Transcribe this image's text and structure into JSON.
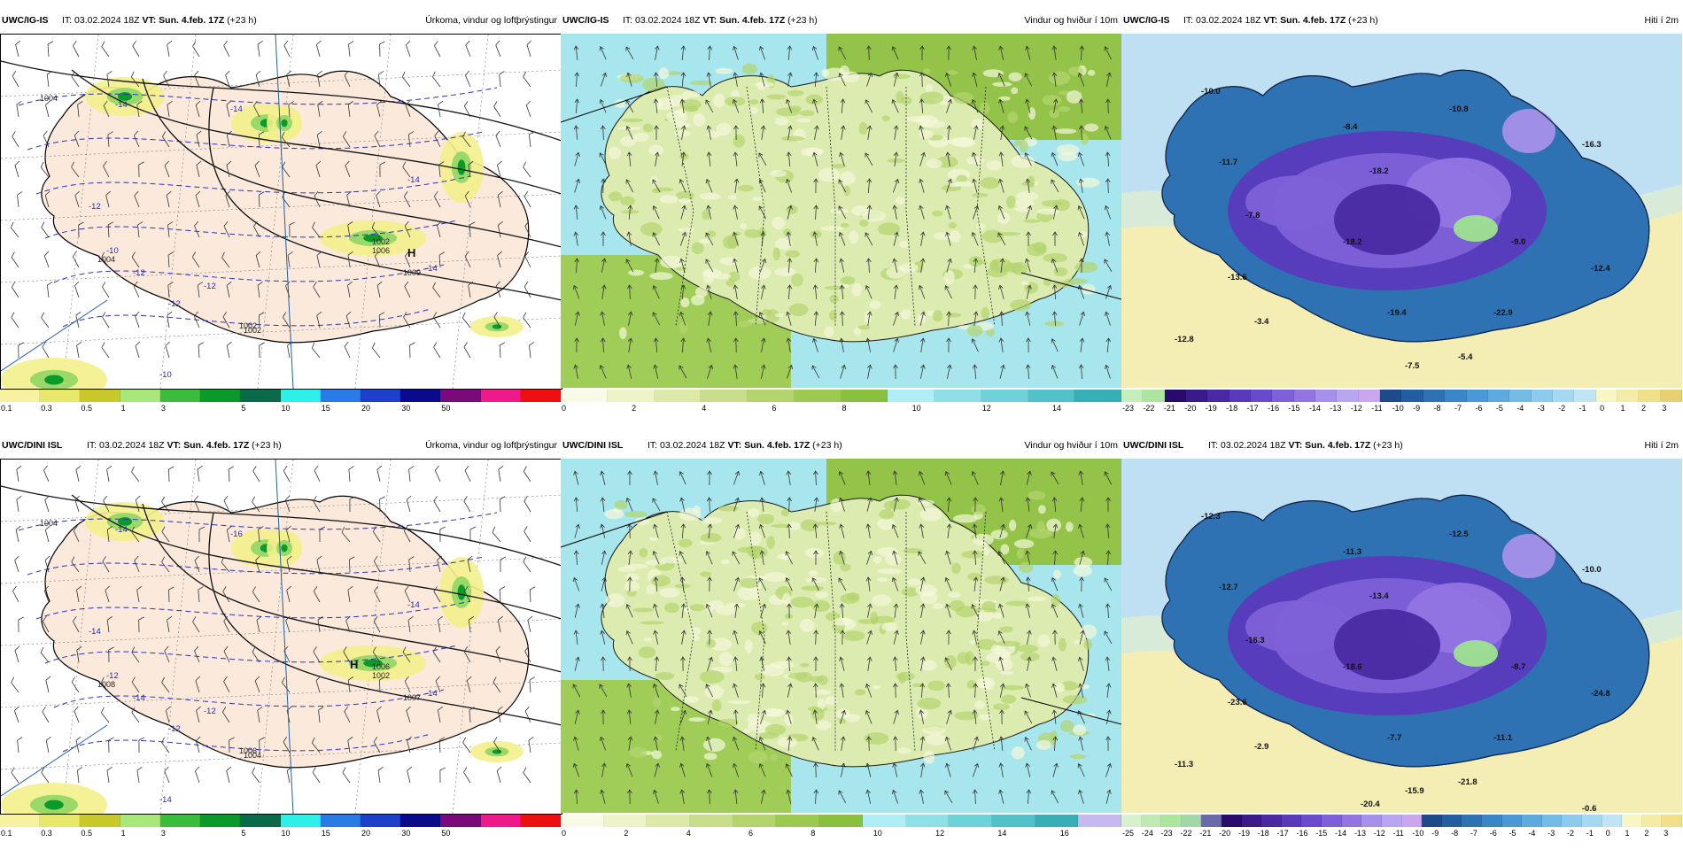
{
  "panels": [
    {
      "model": "UWC/IG-IS",
      "it_prefix": "IT: 03.02.2024 18Z ",
      "vt": "VT: Sun. 4.feb. 17Z",
      "lead": " (+23 h)",
      "title": "Úrkoma, vindur og loftþrýstingur",
      "kind": "precip",
      "colorbar": [
        "#f6f2a0",
        "#e8e86a",
        "#c8c82a",
        "#a8e87a",
        "#3cbc3c",
        "#0a9a2a",
        "#0a6a4a",
        "#2ef0e8",
        "#2a7ae8",
        "#1e3ecc",
        "#0a0a8a",
        "#7a0a7a",
        "#ee1a8a",
        "#ee1010"
      ],
      "ticks": [
        "0.1",
        "0.3",
        "0.5",
        "1",
        "3",
        "",
        "5",
        "10",
        "15",
        "20",
        "30",
        "50",
        "",
        ""
      ],
      "isobars": [
        "1004",
        "1002",
        "1004",
        "1002",
        "1006",
        "1009",
        "1002"
      ],
      "contour_labels": [
        "-14",
        "-14",
        "-14",
        "-12",
        "-12",
        "-10",
        "-12",
        "-10",
        "-12",
        "-14"
      ],
      "high": "H"
    },
    {
      "model": "UWC/IG-IS",
      "it_prefix": "IT: 03.02.2024 18Z ",
      "vt": "VT: Sun. 4.feb. 17Z",
      "lead": " (+23 h)",
      "title": "Vindur og hviður í 10m",
      "kind": "wind",
      "colorbar": [
        "#fafbe6",
        "#eef3c8",
        "#dde9a8",
        "#c8de8c",
        "#b4d46e",
        "#9cc950",
        "#8ac040",
        "#aeeef4",
        "#8ee0e6",
        "#6ed2d8",
        "#50c2c8",
        "#36b0b6"
      ],
      "ticks": [
        "0",
        "",
        "2",
        "",
        "4",
        "",
        "6",
        "",
        "8",
        "",
        "10",
        "",
        "12",
        "",
        "14",
        ""
      ]
    },
    {
      "model": "UWC/IG-IS",
      "it_prefix": "IT: 03.02.2024 18Z ",
      "vt": "VT: Sun. 4.feb. 17Z",
      "lead": " (+23 h)",
      "title": "Hiti í 2m",
      "kind": "temp",
      "colorbar": [
        "#c6eebc",
        "#ace4a0",
        "#2a0a6a",
        "#3a1a8a",
        "#4a2aa2",
        "#5a3abc",
        "#6a4acc",
        "#7e60d8",
        "#9274e2",
        "#a690ea",
        "#b8a6f0",
        "#caa6ee",
        "#1e4a8a",
        "#245ea0",
        "#2e72b4",
        "#3a86c6",
        "#4a98d4",
        "#5eaade",
        "#74bce6",
        "#8ccaee",
        "#a6d8f2",
        "#c0e4f4",
        "#f8f6c4",
        "#f4eca6",
        "#f0e08a",
        "#e8d070"
      ],
      "ticks": [
        "-23",
        "-22",
        "-21",
        "-20",
        "-19",
        "-18",
        "-17",
        "-16",
        "-15",
        "-14",
        "-13",
        "-12",
        "-11",
        "-10",
        "-9",
        "-8",
        "-7",
        "-6",
        "-5",
        "-4",
        "-3",
        "-2",
        "-1",
        "0",
        "1",
        "2",
        "3"
      ],
      "labels": [
        "-10.0",
        "-8.4",
        "-10.8",
        "-16.3",
        "-11.7",
        "-7.8",
        "-18.2",
        "-9.0",
        "-13.6",
        "-18.2",
        "-12.4",
        "-22.9",
        "-3.4",
        "-19.4",
        "-7.5",
        "-5.4",
        "-12.8"
      ]
    },
    {
      "model": "UWC/DINI ISL",
      "it_prefix": "IT: 03.02.2024 18Z ",
      "vt": "VT: Sun. 4.feb. 17Z",
      "lead": " (+23 h)",
      "title": "Úrkoma, vindur og loftþrýstingur",
      "kind": "precip",
      "colorbar": [
        "#f6f2a0",
        "#e8e86a",
        "#c8c82a",
        "#a8e87a",
        "#3cbc3c",
        "#0a9a2a",
        "#0a6a4a",
        "#2ef0e8",
        "#2a7ae8",
        "#1e3ecc",
        "#0a0a8a",
        "#7a0a7a",
        "#ee1a8a",
        "#ee1010"
      ],
      "ticks": [
        "0.1",
        "0.3",
        "0.5",
        "1",
        "3",
        "",
        "5",
        "10",
        "15",
        "20",
        "30",
        "50",
        "",
        ""
      ],
      "isobars": [
        "1004",
        "1006",
        "1008",
        "1004",
        "1002",
        "1007",
        "1006"
      ],
      "contour_labels": [
        "-16",
        "-14",
        "-14",
        "-14",
        "-14",
        "-12",
        "-12",
        "-14",
        "-12",
        "-14"
      ],
      "high": "H"
    },
    {
      "model": "UWC/DINI ISL",
      "it_prefix": "IT: 03.02.2024 18Z ",
      "vt": "VT: Sun. 4.feb. 17Z",
      "lead": " (+23 h)",
      "title": "Vindur og hviður í 10m",
      "kind": "wind",
      "colorbar": [
        "#fafbe6",
        "#eef3c8",
        "#dde9a8",
        "#c8de8c",
        "#b4d46e",
        "#9cc950",
        "#8ac040",
        "#aeeef4",
        "#8ee0e6",
        "#6ed2d8",
        "#50c2c8",
        "#36b0b6",
        "#c8b8f0"
      ],
      "ticks": [
        "0",
        "",
        "2",
        "",
        "4",
        "",
        "6",
        "",
        "8",
        "",
        "10",
        "",
        "12",
        "",
        "14",
        "",
        "16",
        ""
      ]
    },
    {
      "model": "UWC/DINI ISL",
      "it_prefix": "IT: 03.02.2024 18Z ",
      "vt": "VT: Sun. 4.feb. 17Z",
      "lead": " (+23 h)",
      "title": "Hiti í 2m",
      "kind": "temp",
      "colorbar": [
        "#d6f2cc",
        "#c0eab4",
        "#ace4a0",
        "#a2d8a8",
        "#6a6aa8",
        "#2a0a6a",
        "#3a1a8a",
        "#4a2aa2",
        "#5a3abc",
        "#6a4acc",
        "#7e60d8",
        "#9274e2",
        "#a690ea",
        "#b8a6f0",
        "#caa6ee",
        "#1e4a8a",
        "#245ea0",
        "#2e72b4",
        "#3a86c6",
        "#4a98d4",
        "#5eaade",
        "#74bce6",
        "#8ccaee",
        "#a6d8f2",
        "#c0e4f4",
        "#f8f6c4",
        "#f4eca6",
        "#f0e08a"
      ],
      "ticks": [
        "-25",
        "-24",
        "-23",
        "-22",
        "-21",
        "-20",
        "-19",
        "-18",
        "-17",
        "-16",
        "-15",
        "-14",
        "-13",
        "-12",
        "-11",
        "-10",
        "-9",
        "-8",
        "-7",
        "-6",
        "-5",
        "-4",
        "-3",
        "-2",
        "-1",
        "0",
        "1",
        "2",
        "3"
      ],
      "labels": [
        "-12.3",
        "-11.3",
        "-12.5",
        "-10.0",
        "-12.7",
        "-16.3",
        "-13.4",
        "-8.7",
        "-23.6",
        "-18.6",
        "-24.8",
        "-11.1",
        "-2.9",
        "-7.7",
        "-15.9",
        "-21.8",
        "-11.3",
        "-20.4",
        "-0.6"
      ]
    }
  ]
}
